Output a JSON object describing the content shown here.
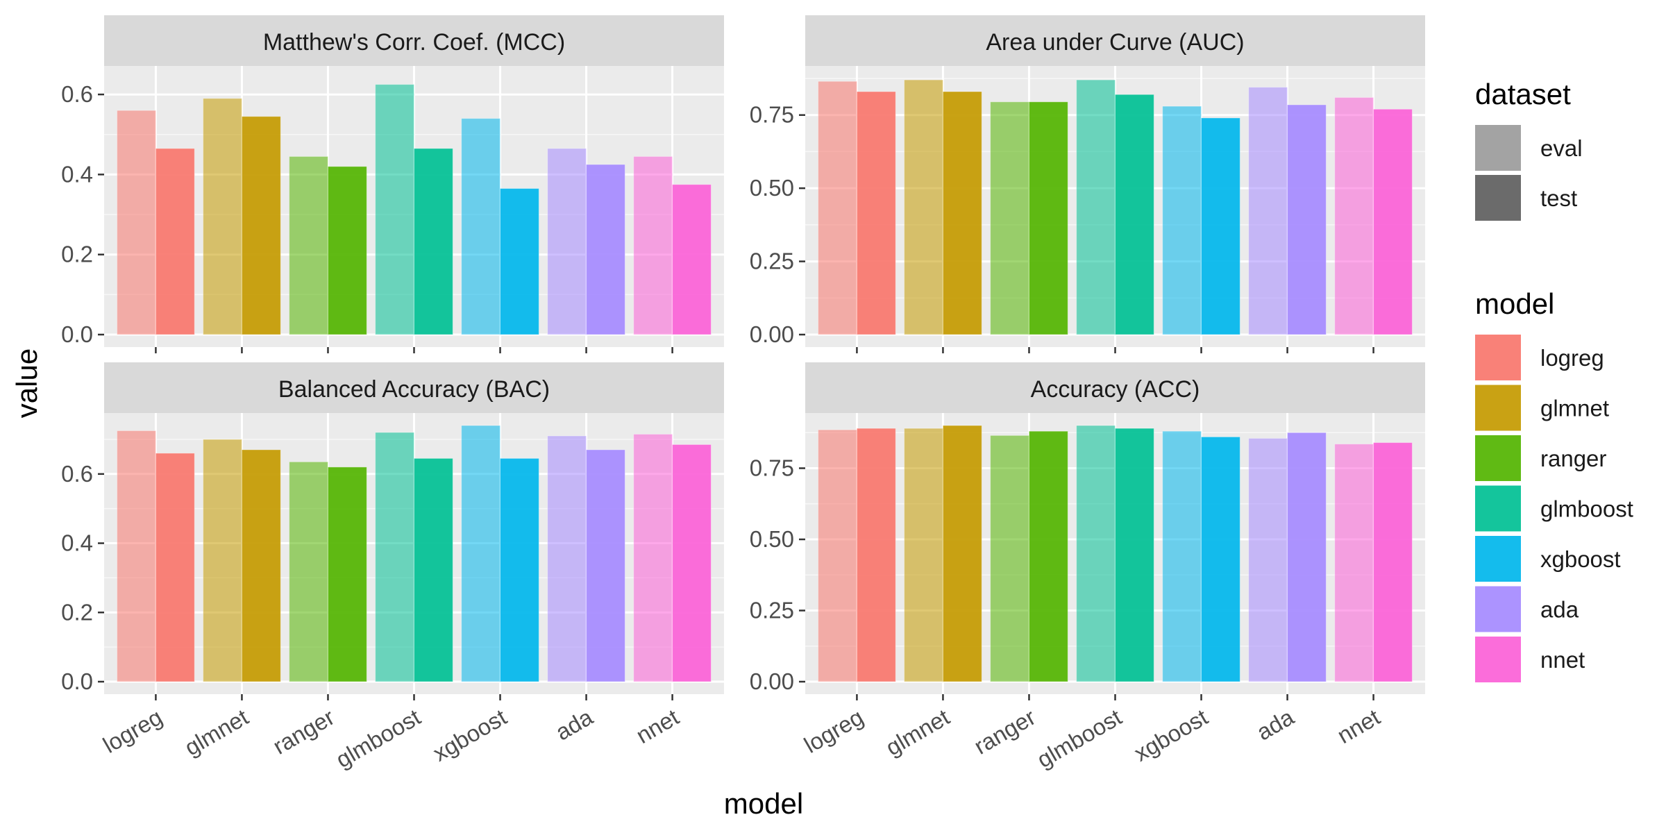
{
  "chart_data": {
    "type": "bar",
    "xlabel": "model",
    "ylabel": "value",
    "categories": [
      "logreg",
      "glmnet",
      "ranger",
      "glmboost",
      "xgboost",
      "ada",
      "nnet"
    ],
    "colors": {
      "logreg": "#F8766D",
      "glmnet": "#C49A00",
      "ranger": "#53B400",
      "glmboost": "#00C094",
      "xgboost": "#00B6EB",
      "ada": "#A58AFF",
      "nnet": "#FB61D7"
    },
    "datasets": [
      "eval",
      "test"
    ],
    "legend": {
      "dataset_title": "dataset",
      "dataset_items": [
        "eval",
        "test"
      ],
      "dataset_swatch_colors": [
        "#A3A3A3",
        "#6B6B6B"
      ],
      "model_title": "model",
      "model_items": [
        "logreg",
        "glmnet",
        "ranger",
        "glmboost",
        "xgboost",
        "ada",
        "nnet"
      ],
      "placement": "right"
    },
    "grid": true,
    "panels": [
      {
        "title": "Matthew's Corr. Coef. (MCC)",
        "ylim": [
          0,
          0.64
        ],
        "yticks": [
          0,
          0.2,
          0.4,
          0.6
        ],
        "ytick_labels": [
          "0.0",
          "0.2",
          "0.4",
          "0.6"
        ],
        "series": [
          {
            "name": "eval",
            "values": [
              0.56,
              0.59,
              0.445,
              0.625,
              0.54,
              0.465,
              0.445
            ]
          },
          {
            "name": "test",
            "values": [
              0.465,
              0.545,
              0.42,
              0.465,
              0.365,
              0.425,
              0.375
            ]
          }
        ]
      },
      {
        "title": "Area under Curve (AUC)",
        "ylim": [
          0,
          0.875
        ],
        "yticks": [
          0,
          0.25,
          0.5,
          0.75
        ],
        "ytick_labels": [
          "0.00",
          "0.25",
          "0.50",
          "0.75"
        ],
        "series": [
          {
            "name": "eval",
            "values": [
              0.865,
              0.87,
              0.795,
              0.87,
              0.78,
              0.845,
              0.81
            ]
          },
          {
            "name": "test",
            "values": [
              0.83,
              0.83,
              0.795,
              0.82,
              0.74,
              0.785,
              0.77
            ]
          }
        ]
      },
      {
        "title": "Balanced Accuracy (BAC)",
        "ylim": [
          0,
          0.74
        ],
        "yticks": [
          0,
          0.2,
          0.4,
          0.6
        ],
        "ytick_labels": [
          "0.0",
          "0.2",
          "0.4",
          "0.6"
        ],
        "series": [
          {
            "name": "eval",
            "values": [
              0.725,
              0.7,
              0.635,
              0.72,
              0.74,
              0.71,
              0.715
            ]
          },
          {
            "name": "test",
            "values": [
              0.66,
              0.67,
              0.62,
              0.645,
              0.645,
              0.67,
              0.685
            ]
          }
        ]
      },
      {
        "title": "Accuracy (ACC)",
        "ylim": [
          0,
          0.9
        ],
        "yticks": [
          0,
          0.25,
          0.5,
          0.75
        ],
        "ytick_labels": [
          "0.00",
          "0.25",
          "0.50",
          "0.75"
        ],
        "series": [
          {
            "name": "eval",
            "values": [
              0.885,
              0.89,
              0.865,
              0.9,
              0.88,
              0.855,
              0.835
            ]
          },
          {
            "name": "test",
            "values": [
              0.89,
              0.9,
              0.88,
              0.89,
              0.86,
              0.875,
              0.84
            ]
          }
        ]
      }
    ]
  }
}
